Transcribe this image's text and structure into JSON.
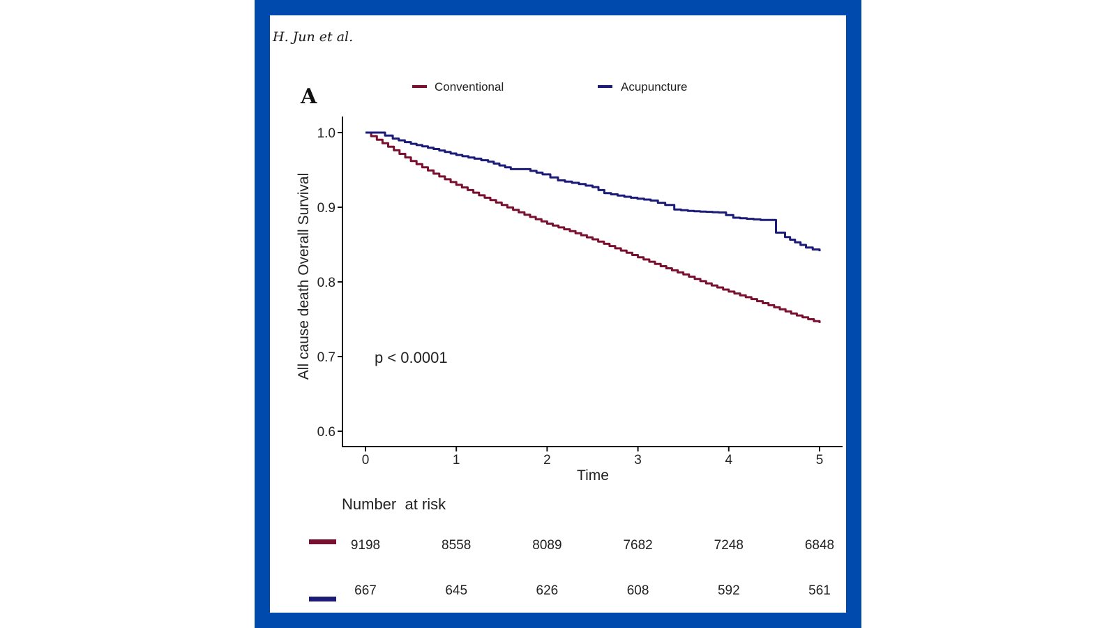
{
  "header": {
    "author": "H. Jun et al."
  },
  "colors": {
    "frame": "#004aad",
    "conventional": "#7a1030",
    "acupuncture": "#1c1c78"
  },
  "chart_data": {
    "type": "line",
    "subtype": "kaplan-meier",
    "panel_label": "A",
    "title": "",
    "xlabel": "Time",
    "ylabel": "All cause death Overall Survival",
    "xlim": [
      0,
      5
    ],
    "ylim": [
      0.6,
      1.0
    ],
    "xticks": [
      "0",
      "1",
      "2",
      "3",
      "4",
      "5"
    ],
    "yticks": [
      "0.6",
      "0.7",
      "0.8",
      "0.9",
      "1.0"
    ],
    "grid": false,
    "legend_position": "top",
    "annotation": "p < 0.0001",
    "series": [
      {
        "name": "Conventional",
        "color": "#7a1030",
        "x": [
          0,
          0.25,
          0.5,
          0.75,
          1.0,
          1.25,
          1.5,
          1.75,
          2.0,
          2.25,
          2.5,
          2.75,
          3.0,
          3.25,
          3.5,
          3.75,
          4.0,
          4.25,
          4.5,
          4.75,
          5.0
        ],
        "y": [
          1.0,
          0.981,
          0.962,
          0.945,
          0.93,
          0.916,
          0.903,
          0.89,
          0.878,
          0.868,
          0.857,
          0.845,
          0.833,
          0.821,
          0.81,
          0.798,
          0.787,
          0.777,
          0.766,
          0.755,
          0.745
        ]
      },
      {
        "name": "Acupuncture",
        "color": "#1c1c78",
        "x": [
          0,
          0.13,
          0.3,
          0.5,
          0.75,
          1.0,
          1.2,
          1.35,
          1.6,
          1.75,
          1.95,
          2.12,
          2.35,
          2.5,
          2.63,
          2.85,
          3.14,
          3.3,
          3.4,
          3.55,
          3.89,
          4.05,
          4.35,
          4.45,
          4.52,
          4.62,
          4.73,
          4.85,
          5.0
        ],
        "y": [
          1.0,
          1.0,
          0.992,
          0.985,
          0.978,
          0.97,
          0.965,
          0.961,
          0.951,
          0.951,
          0.944,
          0.936,
          0.931,
          0.927,
          0.919,
          0.914,
          0.909,
          0.903,
          0.897,
          0.895,
          0.893,
          0.886,
          0.883,
          0.883,
          0.866,
          0.86,
          0.853,
          0.846,
          0.841
        ]
      }
    ],
    "risk_table": {
      "title": "Number  at risk",
      "times": [
        0,
        1,
        2,
        3,
        4,
        5
      ],
      "rows": [
        {
          "name": "Conventional",
          "values": [
            "9198",
            "8558",
            "8089",
            "7682",
            "7248",
            "6848"
          ]
        },
        {
          "name": "Acupuncture",
          "values": [
            "667",
            "645",
            "626",
            "608",
            "592",
            "561"
          ]
        }
      ]
    }
  }
}
